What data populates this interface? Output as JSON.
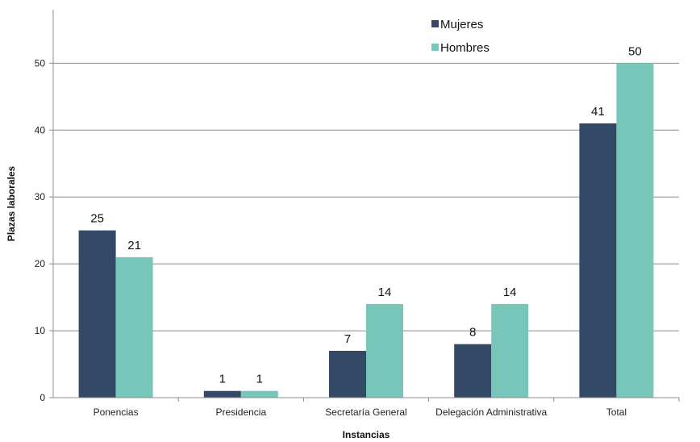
{
  "chart_data": {
    "type": "bar",
    "categories": [
      "Ponencias",
      "Presidencia",
      "Secretaría General",
      "Delegación Administrativa",
      "Total"
    ],
    "series": [
      {
        "name": "Mujeres",
        "values": [
          25,
          1,
          7,
          8,
          41
        ],
        "color": "#334966"
      },
      {
        "name": "Hombres",
        "values": [
          21,
          1,
          14,
          14,
          50
        ],
        "color": "#76c6b9"
      }
    ],
    "xlabel": "Instancias",
    "ylabel": "Plazas laborales",
    "ylim": [
      0,
      58
    ],
    "yticks": [
      0,
      10,
      20,
      30,
      40,
      50
    ],
    "grid": true,
    "legend": "top-center",
    "data_labels": true
  }
}
